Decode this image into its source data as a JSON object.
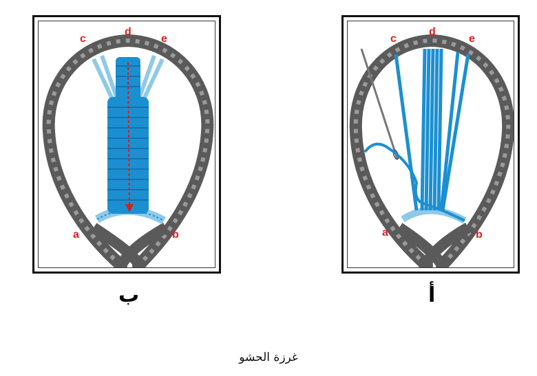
{
  "title": "غرزة الحشو",
  "panels": [
    {
      "id": "b",
      "caption": "ب",
      "point_labels": [
        "c",
        "d",
        "e",
        "a",
        "b"
      ]
    },
    {
      "id": "a",
      "caption": "أ",
      "point_labels": [
        "c",
        "d",
        "e",
        "a",
        "b"
      ]
    }
  ],
  "colors": {
    "chain": "#6b6b6b",
    "thread": "#1c8fd1",
    "thread_light": "#8fc9ea",
    "label": "#e02020",
    "arrow": "#d81e1e"
  }
}
